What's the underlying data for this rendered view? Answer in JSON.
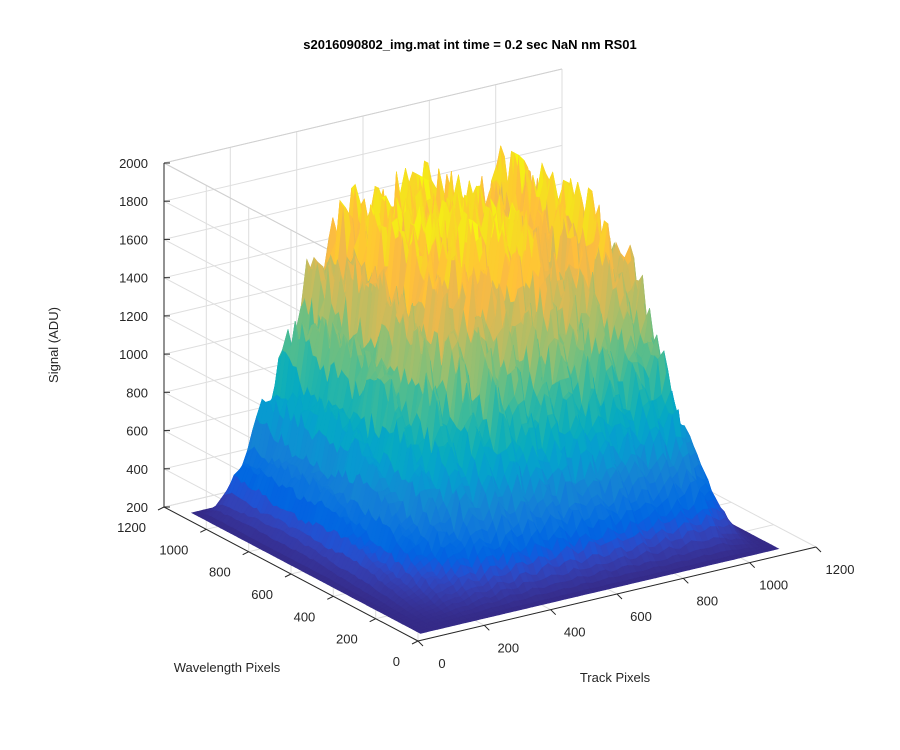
{
  "chart_data": {
    "type": "surface",
    "title": "s2016090802_img.mat int time = 0.2 sec  NaN nm RS01",
    "xlabel": "Track Pixels",
    "ylabel": "Wavelength Pixels",
    "zlabel": "Signal (ADU)",
    "xlim": [
      0,
      1200
    ],
    "ylim": [
      0,
      1200
    ],
    "zlim": [
      200,
      2000
    ],
    "x_ticks": [
      0,
      200,
      400,
      600,
      800,
      1000,
      1200
    ],
    "y_ticks": [
      0,
      200,
      400,
      600,
      800,
      1000,
      1200
    ],
    "z_ticks": [
      200,
      400,
      600,
      800,
      1000,
      1200,
      1400,
      1600,
      1800,
      2000
    ],
    "grid": true,
    "colormap": "parula",
    "surface_extent": {
      "track": [
        20,
        1100
      ],
      "wavelength": [
        20,
        1100
      ]
    },
    "baseline_signal": 220,
    "peak_signal": 1800,
    "description": ""
  }
}
